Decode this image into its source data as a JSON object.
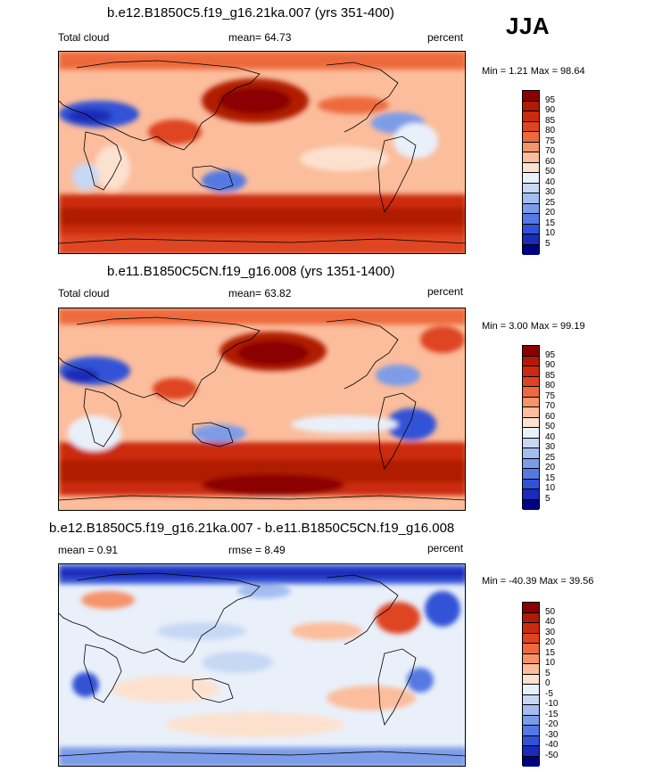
{
  "season": "JJA",
  "panels": [
    {
      "title": "b.e12.B1850C5.f19_g16.21ka.007 (yrs 351-400)",
      "left_label": "Total cloud",
      "mean_label": "mean=  64.73",
      "right_label": "percent",
      "minmax": "Min =   1.21 Max =  98.64",
      "palette": "cloud"
    },
    {
      "title": "b.e11.B1850C5CN.f19_g16.008 (yrs 1351-1400)",
      "left_label": "Total cloud",
      "mean_label": "mean=  63.82",
      "right_label": "percent",
      "minmax": "Min =   3.00 Max =  99.19",
      "palette": "cloud"
    },
    {
      "title": "b.e12.B1850C5.f19_g16.21ka.007 - b.e11.B1850C5CN.f19_g16.008",
      "left_label": "mean =   0.91",
      "mean_label": "rmse =   8.49",
      "right_label": "percent",
      "minmax": "Min = -40.39 Max =  39.56",
      "palette": "diff"
    }
  ],
  "colorbars": {
    "cloud": {
      "levels": [
        "95",
        "90",
        "85",
        "80",
        "75",
        "70",
        "60",
        "50",
        "40",
        "30",
        "25",
        "20",
        "15",
        "10",
        "5"
      ],
      "colors": [
        "#8b0000",
        "#b01a06",
        "#cc2a10",
        "#de4420",
        "#ed6a3e",
        "#f5936a",
        "#fbbd9c",
        "#fde1cf",
        "#e9f0fa",
        "#c7d8f4",
        "#a3bdf0",
        "#7d9ce8",
        "#5479e2",
        "#3152d6",
        "#1a2bb8",
        "#000080"
      ]
    },
    "diff": {
      "levels": [
        "50",
        "40",
        "30",
        "20",
        "15",
        "10",
        "5",
        "0",
        "-5",
        "-10",
        "-15",
        "-20",
        "-30",
        "-40",
        "-50"
      ],
      "colors": [
        "#8b0000",
        "#b01a06",
        "#cc2a10",
        "#de4420",
        "#ed6a3e",
        "#f5936a",
        "#fbbd9c",
        "#fde1cf",
        "#e9f0fa",
        "#c7d8f4",
        "#a3bdf0",
        "#7d9ce8",
        "#5479e2",
        "#3152d6",
        "#1a2bb8",
        "#000080"
      ]
    }
  }
}
